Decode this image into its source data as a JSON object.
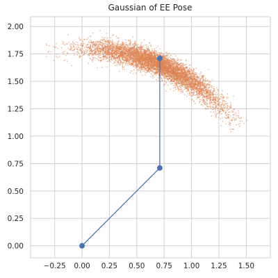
{
  "chart_data": {
    "type": "scatter",
    "title": "Gaussian of EE Pose",
    "xlabel": "",
    "ylabel": "",
    "xlim": [
      -0.47,
      1.72
    ],
    "ylim": [
      -0.11,
      2.09
    ],
    "xticks": [
      -0.25,
      0.0,
      0.25,
      0.5,
      0.75,
      1.0,
      1.25,
      1.5
    ],
    "xtick_labels": [
      "−0.25",
      "0.00",
      "0.25",
      "0.50",
      "0.75",
      "1.00",
      "1.25",
      "1.50"
    ],
    "yticks": [
      0.0,
      0.25,
      0.5,
      0.75,
      1.0,
      1.25,
      1.5,
      1.75,
      2.0
    ],
    "ytick_labels": [
      "0.00",
      "0.25",
      "0.50",
      "0.75",
      "1.00",
      "1.25",
      "1.50",
      "1.75",
      "2.00"
    ],
    "grid": true,
    "scatter_cloud": {
      "description_of_shape": "arc-shaped point cloud of end-effector positions",
      "color": "#dd8452",
      "arc_center": [
        0.0,
        0.0
      ],
      "radius_mean": 1.8,
      "radius_std": 0.05,
      "angle_mean_deg": 67,
      "angle_std_deg": 11,
      "angle_range_deg": [
        37,
        101
      ],
      "x_range": [
        -0.35,
        1.6
      ],
      "y_range": [
        0.95,
        2.0
      ]
    },
    "arm": {
      "color": "#4c72b0",
      "joints": [
        {
          "x": 0.0,
          "y": 0.0
        },
        {
          "x": 0.71,
          "y": 0.71
        },
        {
          "x": 0.71,
          "y": 1.71
        }
      ]
    }
  }
}
